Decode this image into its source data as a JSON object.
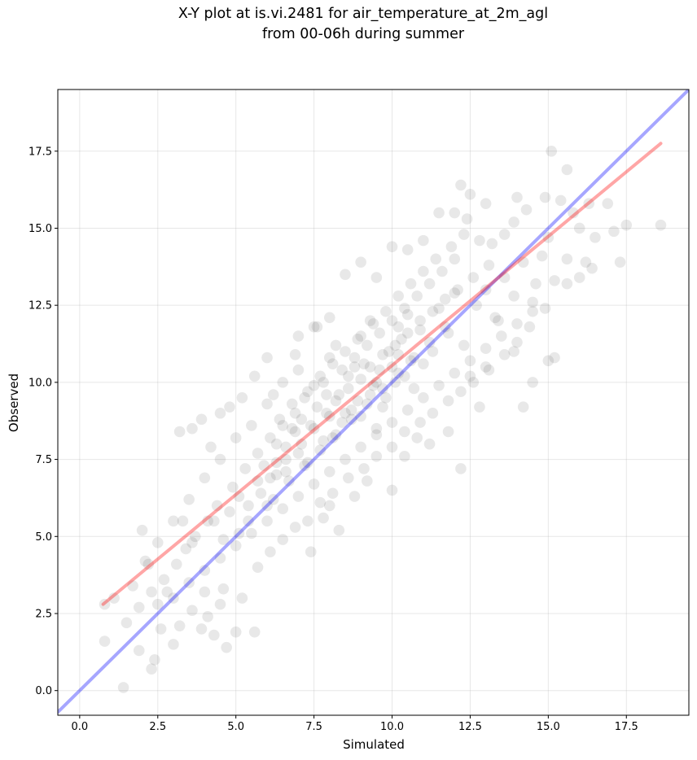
{
  "chart_data": {
    "type": "scatter",
    "title_line1": "X-Y plot at is.vi.2481 for air_temperature_at_2m_agl",
    "title_line2": "from 00-06h during summer",
    "xlabel": "Simulated",
    "ylabel": "Observed",
    "xlim": [
      -0.7,
      19.5
    ],
    "ylim": [
      -0.8,
      19.5
    ],
    "xticks": [
      0.0,
      2.5,
      5.0,
      7.5,
      10.0,
      12.5,
      15.0,
      17.5
    ],
    "xtick_labels": [
      "0.0",
      "2.5",
      "5.0",
      "7.5",
      "10.0",
      "12.5",
      "15.0",
      "17.5"
    ],
    "yticks": [
      0.0,
      2.5,
      5.0,
      7.5,
      10.0,
      12.5,
      15.0,
      17.5
    ],
    "ytick_labels": [
      "0.0",
      "2.5",
      "5.0",
      "7.5",
      "10.0",
      "12.5",
      "15.0",
      "17.5"
    ],
    "grid": true,
    "point_color": "#000000",
    "point_alpha": 0.09,
    "one_to_one_line": {
      "color": "#0000ff",
      "alpha": 0.35,
      "x": [
        -0.7,
        19.5
      ],
      "y": [
        -0.7,
        19.5
      ]
    },
    "regression_line": {
      "color": "#ff0000",
      "alpha": 0.35,
      "x": [
        0.75,
        18.6
      ],
      "y": [
        2.8,
        17.75
      ]
    },
    "series": [
      {
        "points": [
          [
            0.8,
            1.6
          ],
          [
            1.4,
            0.1
          ],
          [
            2.3,
            0.7
          ],
          [
            2.4,
            1.0
          ],
          [
            2.6,
            2.0
          ],
          [
            3.0,
            1.5
          ],
          [
            3.3,
            5.5
          ],
          [
            3.6,
            4.8
          ],
          [
            2.0,
            5.2
          ],
          [
            2.1,
            4.2
          ],
          [
            1.9,
            1.3
          ],
          [
            3.2,
            8.4
          ],
          [
            3.6,
            8.5
          ],
          [
            3.9,
            8.8
          ],
          [
            4.2,
            7.9
          ],
          [
            4.5,
            9.0
          ],
          [
            4.8,
            9.2
          ],
          [
            5.2,
            9.5
          ],
          [
            5.6,
            10.2
          ],
          [
            6.0,
            10.8
          ],
          [
            6.2,
            9.6
          ],
          [
            6.9,
            10.9
          ],
          [
            7.0,
            11.5
          ],
          [
            7.6,
            11.8
          ],
          [
            7.4,
            4.5
          ],
          [
            7.8,
            5.6
          ],
          [
            8.0,
            6.0
          ],
          [
            8.3,
            5.2
          ],
          [
            8.8,
            6.3
          ],
          [
            9.2,
            6.8
          ],
          [
            10.0,
            6.5
          ],
          [
            10.4,
            7.6
          ],
          [
            10.8,
            8.2
          ],
          [
            11.2,
            8.0
          ],
          [
            11.8,
            8.4
          ],
          [
            12.2,
            7.2
          ],
          [
            12.5,
            10.2
          ],
          [
            12.8,
            9.2
          ],
          [
            13.0,
            10.5
          ],
          [
            13.4,
            12.0
          ],
          [
            13.9,
            11.0
          ],
          [
            14.2,
            9.2
          ],
          [
            14.5,
            10.0
          ],
          [
            15.0,
            10.7
          ],
          [
            15.2,
            10.8
          ],
          [
            15.6,
            13.2
          ],
          [
            16.0,
            13.4
          ],
          [
            16.2,
            13.9
          ],
          [
            16.4,
            13.7
          ],
          [
            17.3,
            13.9
          ],
          [
            18.6,
            15.1
          ],
          [
            17.5,
            15.1
          ],
          [
            15.1,
            17.5
          ],
          [
            15.6,
            16.9
          ],
          [
            14.9,
            16.0
          ],
          [
            13.9,
            15.2
          ],
          [
            12.5,
            16.1
          ],
          [
            12.2,
            16.4
          ],
          [
            13.0,
            15.8
          ],
          [
            15.0,
            14.7
          ],
          [
            14.6,
            13.2
          ],
          [
            5.6,
            1.9
          ],
          [
            5.0,
            1.9
          ],
          [
            4.7,
            1.4
          ],
          [
            4.3,
            1.8
          ],
          [
            3.9,
            2.0
          ],
          [
            4.5,
            2.8
          ],
          [
            4.0,
            3.2
          ],
          [
            4.3,
            5.5
          ],
          [
            4.6,
            4.9
          ],
          [
            5.1,
            5.1
          ],
          [
            5.4,
            6.0
          ],
          [
            5.8,
            6.4
          ],
          [
            6.3,
            7.0
          ],
          [
            6.6,
            7.5
          ],
          [
            7.1,
            8.0
          ],
          [
            7.5,
            8.5
          ],
          [
            7.9,
            9.0
          ],
          [
            8.2,
            9.4
          ],
          [
            8.6,
            9.8
          ],
          [
            9.0,
            10.1
          ],
          [
            9.3,
            10.5
          ],
          [
            9.7,
            10.9
          ],
          [
            10.1,
            11.2
          ],
          [
            10.5,
            11.6
          ],
          [
            10.9,
            12.0
          ],
          [
            11.3,
            12.3
          ],
          [
            11.7,
            12.7
          ],
          [
            12.1,
            13.0
          ],
          [
            12.6,
            13.4
          ],
          [
            13.1,
            13.8
          ],
          [
            6.4,
            8.8
          ],
          [
            6.8,
            9.3
          ],
          [
            7.3,
            9.7
          ],
          [
            7.7,
            10.2
          ],
          [
            8.1,
            10.6
          ],
          [
            8.5,
            11.0
          ],
          [
            8.9,
            11.4
          ],
          [
            9.4,
            11.9
          ],
          [
            9.8,
            12.3
          ],
          [
            10.2,
            12.8
          ],
          [
            10.6,
            13.2
          ],
          [
            11.0,
            13.6
          ],
          [
            11.4,
            14.0
          ],
          [
            11.9,
            14.4
          ],
          [
            12.3,
            14.8
          ],
          [
            5.3,
            7.2
          ],
          [
            5.7,
            7.7
          ],
          [
            6.1,
            8.2
          ],
          [
            6.5,
            8.6
          ],
          [
            6.9,
            9.0
          ],
          [
            7.2,
            9.5
          ],
          [
            7.8,
            10.0
          ],
          [
            8.4,
            10.4
          ],
          [
            8.8,
            10.8
          ],
          [
            9.2,
            11.2
          ],
          [
            9.6,
            11.6
          ],
          [
            10.0,
            12.0
          ],
          [
            10.4,
            12.4
          ],
          [
            10.8,
            12.8
          ],
          [
            11.2,
            13.2
          ],
          [
            11.6,
            13.6
          ],
          [
            12.0,
            14.0
          ],
          [
            4.9,
            6.6
          ],
          [
            4.4,
            6.0
          ],
          [
            4.1,
            5.5
          ],
          [
            3.7,
            5.0
          ],
          [
            3.4,
            4.6
          ],
          [
            3.1,
            4.1
          ],
          [
            2.7,
            3.6
          ],
          [
            2.3,
            3.2
          ],
          [
            1.9,
            2.7
          ],
          [
            1.5,
            2.2
          ],
          [
            1.1,
            3.0
          ],
          [
            0.8,
            2.8
          ],
          [
            1.7,
            3.4
          ],
          [
            2.5,
            2.8
          ],
          [
            3.0,
            3.0
          ],
          [
            3.5,
            3.5
          ],
          [
            4.0,
            3.9
          ],
          [
            4.5,
            4.3
          ],
          [
            5.0,
            4.7
          ],
          [
            5.5,
            5.1
          ],
          [
            6.0,
            5.5
          ],
          [
            6.5,
            5.9
          ],
          [
            7.0,
            6.3
          ],
          [
            7.5,
            6.7
          ],
          [
            8.0,
            7.1
          ],
          [
            8.5,
            7.5
          ],
          [
            9.0,
            7.9
          ],
          [
            9.5,
            8.3
          ],
          [
            10.0,
            8.7
          ],
          [
            10.5,
            9.1
          ],
          [
            11.0,
            9.5
          ],
          [
            11.5,
            9.9
          ],
          [
            12.0,
            10.3
          ],
          [
            12.5,
            10.7
          ],
          [
            13.0,
            11.1
          ],
          [
            13.5,
            11.5
          ],
          [
            14.0,
            11.9
          ],
          [
            14.5,
            12.3
          ],
          [
            6.2,
            6.2
          ],
          [
            6.7,
            6.8
          ],
          [
            7.2,
            7.3
          ],
          [
            7.7,
            7.8
          ],
          [
            8.2,
            8.3
          ],
          [
            8.7,
            8.8
          ],
          [
            9.2,
            9.3
          ],
          [
            9.7,
            9.8
          ],
          [
            10.2,
            10.3
          ],
          [
            10.7,
            10.8
          ],
          [
            11.2,
            11.3
          ],
          [
            11.7,
            11.8
          ],
          [
            8.0,
            8.9
          ],
          [
            8.3,
            9.6
          ],
          [
            8.6,
            10.2
          ],
          [
            8.9,
            9.4
          ],
          [
            9.1,
            10.6
          ],
          [
            9.4,
            9.9
          ],
          [
            9.6,
            10.4
          ],
          [
            9.9,
            11.0
          ],
          [
            10.1,
            10.0
          ],
          [
            10.3,
            11.4
          ],
          [
            10.6,
            10.7
          ],
          [
            10.9,
            11.7
          ],
          [
            7.4,
            8.6
          ],
          [
            7.6,
            9.2
          ],
          [
            7.9,
            9.6
          ],
          [
            8.1,
            8.2
          ],
          [
            8.4,
            8.7
          ],
          [
            8.7,
            9.1
          ],
          [
            9.0,
            8.9
          ],
          [
            9.3,
            9.6
          ],
          [
            9.5,
            10.0
          ],
          [
            9.8,
            9.5
          ],
          [
            10.2,
            10.9
          ],
          [
            10.4,
            10.2
          ],
          [
            6.6,
            7.9
          ],
          [
            6.9,
            8.4
          ],
          [
            7.1,
            8.8
          ],
          [
            7.3,
            7.4
          ],
          [
            7.5,
            9.9
          ],
          [
            7.8,
            8.1
          ],
          [
            8.0,
            10.8
          ],
          [
            8.2,
            11.2
          ],
          [
            8.5,
            9.0
          ],
          [
            8.8,
            10.5
          ],
          [
            9.0,
            11.5
          ],
          [
            9.3,
            12.0
          ],
          [
            9.5,
            8.5
          ],
          [
            9.7,
            9.2
          ],
          [
            10.0,
            10.5
          ],
          [
            10.2,
            11.8
          ],
          [
            10.5,
            12.2
          ],
          [
            10.7,
            9.8
          ],
          [
            11.0,
            10.6
          ],
          [
            11.3,
            11.0
          ],
          [
            11.5,
            12.4
          ],
          [
            11.8,
            11.6
          ],
          [
            12.0,
            12.9
          ],
          [
            12.3,
            11.2
          ],
          [
            5.9,
            7.3
          ],
          [
            6.1,
            6.9
          ],
          [
            6.3,
            8.0
          ],
          [
            6.6,
            7.1
          ],
          [
            6.8,
            8.5
          ],
          [
            7.0,
            7.7
          ],
          [
            4.8,
            5.8
          ],
          [
            5.1,
            6.3
          ],
          [
            5.4,
            5.5
          ],
          [
            5.7,
            6.8
          ],
          [
            6.0,
            6.0
          ],
          [
            6.3,
            7.4
          ],
          [
            12.7,
            12.5
          ],
          [
            13.0,
            13.0
          ],
          [
            13.3,
            12.1
          ],
          [
            13.6,
            13.4
          ],
          [
            13.9,
            12.8
          ],
          [
            14.2,
            13.9
          ],
          [
            14.5,
            12.6
          ],
          [
            14.8,
            14.1
          ],
          [
            15.2,
            13.3
          ],
          [
            15.6,
            14.0
          ],
          [
            16.0,
            15.0
          ],
          [
            16.3,
            15.8
          ],
          [
            16.9,
            15.8
          ],
          [
            17.1,
            14.9
          ],
          [
            16.5,
            14.7
          ],
          [
            15.8,
            15.5
          ],
          [
            15.4,
            15.9
          ],
          [
            14.3,
            15.6
          ],
          [
            14.0,
            16.0
          ],
          [
            13.6,
            14.8
          ],
          [
            13.2,
            14.5
          ],
          [
            12.8,
            14.6
          ],
          [
            12.4,
            15.3
          ],
          [
            12.0,
            15.5
          ],
          [
            11.5,
            15.5
          ],
          [
            11.0,
            14.6
          ],
          [
            10.5,
            14.3
          ],
          [
            10.0,
            14.4
          ],
          [
            9.5,
            13.4
          ],
          [
            9.0,
            13.9
          ],
          [
            8.5,
            13.5
          ],
          [
            8.0,
            12.1
          ],
          [
            7.5,
            11.8
          ],
          [
            7.0,
            10.4
          ],
          [
            6.5,
            10.0
          ],
          [
            6.0,
            9.3
          ],
          [
            5.5,
            8.6
          ],
          [
            5.0,
            8.2
          ],
          [
            4.5,
            7.5
          ],
          [
            4.0,
            6.9
          ],
          [
            3.5,
            6.2
          ],
          [
            3.0,
            5.5
          ],
          [
            2.5,
            4.8
          ],
          [
            2.2,
            4.1
          ],
          [
            2.8,
            3.2
          ],
          [
            3.2,
            2.1
          ],
          [
            3.6,
            2.6
          ],
          [
            4.1,
            2.4
          ],
          [
            4.6,
            3.3
          ],
          [
            5.2,
            3.0
          ],
          [
            5.7,
            4.0
          ],
          [
            6.1,
            4.5
          ],
          [
            6.5,
            4.9
          ],
          [
            6.9,
            5.3
          ],
          [
            7.3,
            5.5
          ],
          [
            7.7,
            6.1
          ],
          [
            8.1,
            6.4
          ],
          [
            8.6,
            6.9
          ],
          [
            9.1,
            7.2
          ],
          [
            9.5,
            7.6
          ],
          [
            10.0,
            7.9
          ],
          [
            10.4,
            8.4
          ],
          [
            10.9,
            8.7
          ],
          [
            11.3,
            9.0
          ],
          [
            11.8,
            9.4
          ],
          [
            12.2,
            9.7
          ],
          [
            12.6,
            10.0
          ],
          [
            13.1,
            10.4
          ],
          [
            13.6,
            10.9
          ],
          [
            14.0,
            11.3
          ],
          [
            14.4,
            11.8
          ],
          [
            14.9,
            12.4
          ]
        ]
      }
    ]
  }
}
